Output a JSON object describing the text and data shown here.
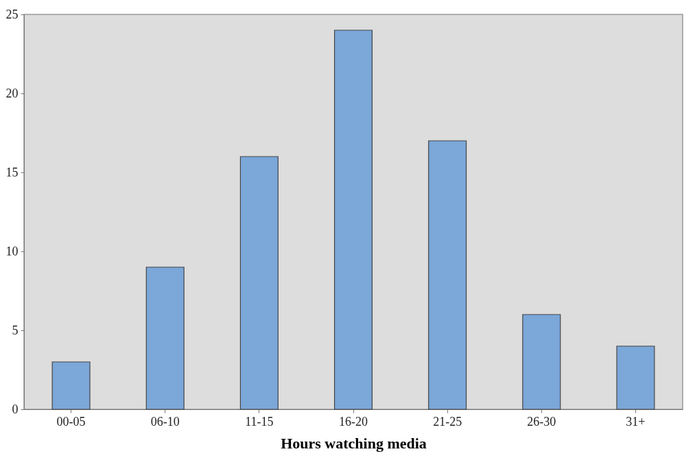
{
  "chart_data": {
    "type": "bar",
    "xlabel": "Hours watching media",
    "categories": [
      "00-05",
      "06-10",
      "11-15",
      "16-20",
      "21-25",
      "26-30",
      "31+"
    ],
    "values": [
      3,
      9,
      16,
      24,
      17,
      6,
      4
    ],
    "color": "#7ba7d9",
    "ylim": [
      0,
      25
    ],
    "yticks": [
      0,
      5,
      10,
      15,
      20,
      25
    ],
    "grid": false
  }
}
